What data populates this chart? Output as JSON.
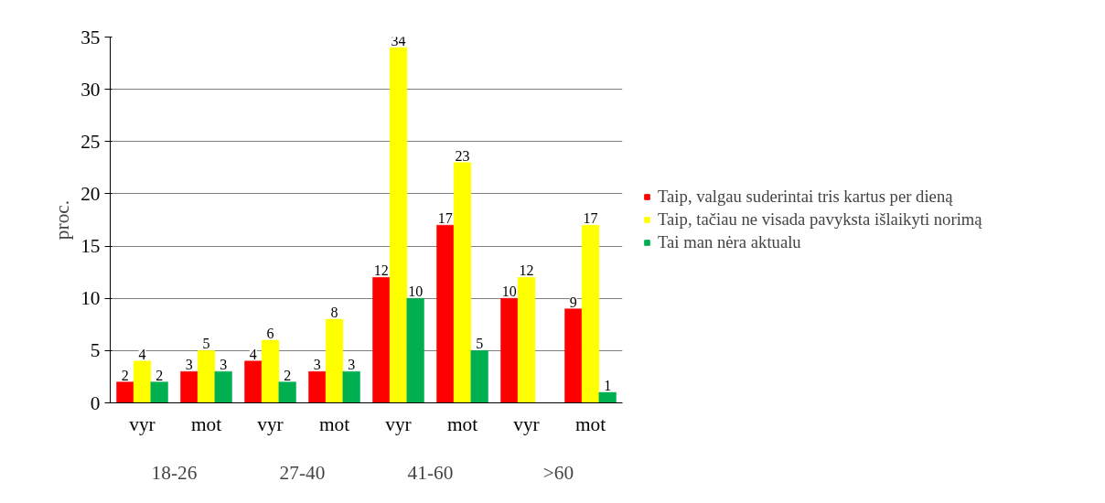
{
  "chart_data": {
    "type": "bar",
    "ylabel": "proc.",
    "categories": [
      "vyr",
      "mot",
      "vyr",
      "mot",
      "vyr",
      "mot",
      "vyr",
      "mot"
    ],
    "annotations": [
      "18-26",
      "27-40",
      "41-60",
      ">60"
    ],
    "series": [
      {
        "name": "Taip, valgau suderintai tris kartus per dieną",
        "color": "#ff0000",
        "values": [
          2,
          3,
          4,
          3,
          12,
          17,
          10,
          9
        ],
        "value_labels": [
          "2",
          "3",
          "4",
          "3",
          "12",
          "17",
          "10",
          "9"
        ]
      },
      {
        "name": "Taip, tačiau ne visada pavyksta išlaikyti norimą",
        "color": "#ffff00",
        "values": [
          4,
          5,
          6,
          8,
          34,
          23,
          12,
          17
        ],
        "value_labels": [
          "4",
          "5",
          "6",
          "8",
          "34",
          "23",
          "12",
          "17"
        ]
      },
      {
        "name": "Tai man nėra aktualu",
        "color": "#00b050",
        "values": [
          2,
          3,
          2,
          3,
          10,
          5,
          0,
          1
        ],
        "value_labels": [
          "2",
          "3",
          "2",
          "3",
          "10",
          "5",
          null,
          "1"
        ]
      }
    ],
    "ylim": [
      0,
      35
    ],
    "yticks": [
      0,
      5,
      10,
      15,
      20,
      25,
      30,
      35
    ],
    "grid": "y",
    "legend": "right"
  }
}
